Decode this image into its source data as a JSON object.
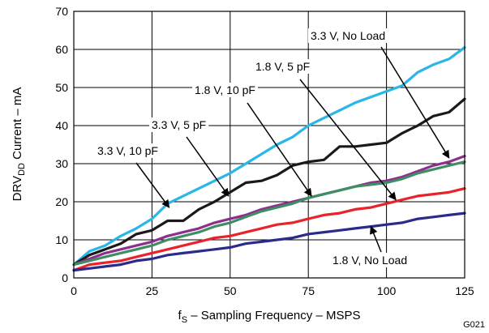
{
  "chart_data": {
    "type": "line",
    "title": "",
    "xlabel": {
      "main": "f",
      "sub": "S",
      "rest": " – Sampling Frequency – MSPS"
    },
    "ylabel": {
      "main": "DRV",
      "sub": "DD",
      "rest": " Current – mA"
    },
    "xlim": [
      0,
      125
    ],
    "ylim": [
      0,
      70
    ],
    "x_ticks": [
      0,
      25,
      50,
      75,
      100,
      125
    ],
    "y_ticks": [
      0,
      10,
      20,
      30,
      40,
      50,
      60,
      70
    ],
    "grid": true,
    "figure_id": "G021",
    "series": [
      {
        "name": "3.3 V, 10 pF",
        "color": "#29b6e8",
        "x": [
          0,
          5,
          10,
          15,
          20,
          25,
          30,
          35,
          40,
          45,
          50,
          55,
          60,
          65,
          70,
          75,
          80,
          85,
          90,
          95,
          100,
          105,
          110,
          115,
          120,
          125
        ],
        "y": [
          3.5,
          7,
          8.5,
          11,
          13,
          15.5,
          19.5,
          21.5,
          23.5,
          25.5,
          27.5,
          30,
          32.5,
          35,
          37,
          40,
          42,
          44,
          46,
          47.5,
          49,
          50.5,
          54,
          56,
          57.5,
          60.5
        ]
      },
      {
        "name": "3.3 V, 5 pF",
        "color": "#1a1a1a",
        "x": [
          0,
          5,
          10,
          15,
          20,
          25,
          30,
          35,
          40,
          45,
          50,
          55,
          60,
          65,
          70,
          75,
          80,
          85,
          90,
          95,
          100,
          105,
          110,
          115,
          120,
          125
        ],
        "y": [
          3.5,
          6,
          7.5,
          9,
          11.5,
          12.5,
          15,
          15,
          18,
          20,
          22.5,
          25,
          25.5,
          27,
          29.5,
          30.5,
          31,
          34.5,
          34.5,
          35,
          35.5,
          38,
          40,
          42.5,
          43.5,
          47
        ]
      },
      {
        "name": "1.8 V, 10 pF",
        "color": "#8e2f8e",
        "x": [
          0,
          5,
          10,
          15,
          20,
          25,
          30,
          35,
          40,
          45,
          50,
          55,
          60,
          65,
          70,
          75,
          80,
          85,
          90,
          95,
          100,
          105,
          110,
          115,
          120,
          125
        ],
        "y": [
          3.5,
          5,
          6.5,
          7.5,
          8.5,
          9.5,
          11,
          12,
          13,
          14.5,
          15.5,
          16.5,
          18,
          19,
          20,
          21,
          22,
          23,
          24,
          25,
          25.5,
          26.5,
          28,
          29.5,
          30.5,
          32
        ]
      },
      {
        "name": "3.3 V, No Load",
        "color": "#3e8e63",
        "x": [
          0,
          5,
          10,
          15,
          20,
          25,
          30,
          35,
          40,
          45,
          50,
          55,
          60,
          65,
          70,
          75,
          80,
          85,
          90,
          95,
          100,
          105,
          110,
          115,
          120,
          125
        ],
        "y": [
          3.5,
          4.5,
          5.5,
          6.5,
          7.5,
          8.5,
          10,
          11,
          12,
          13.5,
          14.5,
          16,
          17.5,
          18.5,
          19.5,
          21,
          22,
          23,
          24,
          24.5,
          25,
          26,
          27.5,
          28.5,
          29.5,
          30.5
        ]
      },
      {
        "name": "1.8 V, 5 pF",
        "color": "#e8232a",
        "x": [
          0,
          5,
          10,
          15,
          20,
          25,
          30,
          35,
          40,
          45,
          50,
          55,
          60,
          65,
          70,
          75,
          80,
          85,
          90,
          95,
          100,
          105,
          110,
          115,
          120,
          125
        ],
        "y": [
          2,
          3.5,
          4,
          4.5,
          5.5,
          6.5,
          7.5,
          8.5,
          9.5,
          10.5,
          11,
          12,
          13,
          14,
          14.5,
          15.5,
          16.5,
          17,
          18,
          18.5,
          19.5,
          20.5,
          21.5,
          22,
          22.5,
          23.5
        ]
      },
      {
        "name": "1.8 V, No Load",
        "color": "#2b2b8c",
        "x": [
          0,
          5,
          10,
          15,
          20,
          25,
          30,
          35,
          40,
          45,
          50,
          55,
          60,
          65,
          70,
          75,
          80,
          85,
          90,
          95,
          100,
          105,
          110,
          115,
          120,
          125
        ],
        "y": [
          2,
          2.5,
          3,
          3.5,
          4.5,
          5,
          6,
          6.5,
          7,
          7.5,
          8,
          9,
          9.5,
          10,
          10.5,
          11.5,
          12,
          12.5,
          13,
          13.5,
          14,
          14.5,
          15.5,
          16,
          16.5,
          17
        ]
      }
    ],
    "annotations": [
      {
        "text": "3.3 V, No Load",
        "target": [
          120,
          31.5
        ]
      },
      {
        "text": "1.8 V, 5 pF",
        "target": [
          103,
          20.5
        ]
      },
      {
        "text": "1.8 V, 10 pF",
        "target": [
          76,
          21.5
        ]
      },
      {
        "text": "3.3 V, 5 pF",
        "target": [
          49.5,
          21.5
        ]
      },
      {
        "text": "3.3 V, 10 pF",
        "target": [
          30.5,
          18.5
        ]
      },
      {
        "text": "1.8 V, No Load",
        "target": [
          95,
          13.5
        ]
      }
    ]
  }
}
